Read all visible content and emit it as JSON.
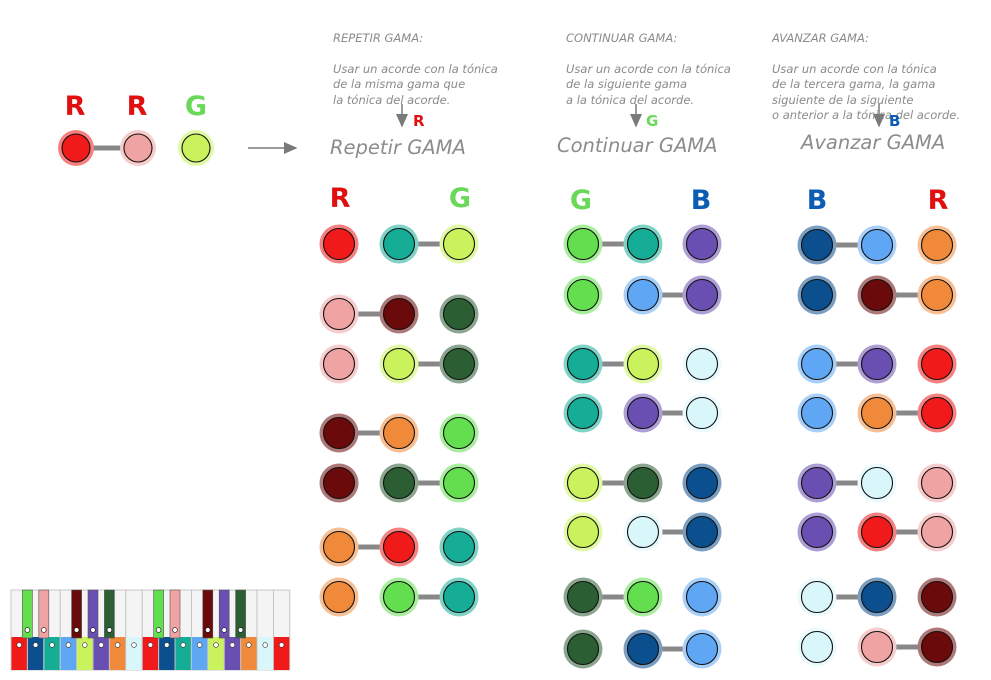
{
  "notes": {
    "repetir": {
      "head": "REPETIR GAMA:",
      "body": "Usar un acorde con la tónica\nde la misma gama que\nla tónica del acorde."
    },
    "continuar": {
      "head": "CONTINUAR GAMA:",
      "body": "Usar un acorde con la tónica\nde la siguiente gama\na la tónica del acorde."
    },
    "avanzar": {
      "head": "AVANZAR GAMA:",
      "body": "Usar un acorde con la tónica\nde la tercera gama, la gama\nsiguiente de la siguiente\no anterior a la tónica del acorde."
    }
  },
  "columns": {
    "repetir": {
      "title": "Repetir GAMA",
      "arrow_letter": "R",
      "left_letter": "R",
      "right_letter": "G"
    },
    "continuar": {
      "title": "Continuar GAMA",
      "arrow_letter": "G",
      "left_letter": "G",
      "right_letter": "B"
    },
    "avanzar": {
      "title": "Avanzar GAMA",
      "arrow_letter": "B",
      "left_letter": "B",
      "right_letter": "R"
    }
  },
  "source": {
    "letters": [
      "R",
      "R",
      "G"
    ]
  },
  "colors": {
    "R": "#e01010",
    "G": "#6ad858",
    "B": "#0b5cb3",
    "red": "#f01a1a",
    "pink": "#f0a3a3",
    "maroon": "#6b0a0a",
    "orange": "#f08a3a",
    "lime": "#c9f25c",
    "green": "#62de4e",
    "teal": "#16ad97",
    "dkgreen": "#2c5e34",
    "ltblue": "#d9f6fb",
    "navy": "#0b4f8f",
    "blue": "#5fa7f4",
    "purple": "#6a4fb3",
    "connector": "#888888"
  },
  "rows": {
    "repetir": [
      [
        "red",
        "teal",
        "lime",
        2
      ],
      [
        "pink",
        "maroon",
        "dkgreen",
        1
      ],
      [
        "pink",
        "lime",
        "dkgreen",
        2
      ],
      [
        "maroon",
        "orange",
        "green",
        1
      ],
      [
        "maroon",
        "dkgreen",
        "green",
        2
      ],
      [
        "orange",
        "red",
        "teal",
        1
      ],
      [
        "orange",
        "green",
        "teal",
        2
      ]
    ],
    "continuar": [
      [
        "green",
        "teal",
        "purple",
        1
      ],
      [
        "green",
        "blue",
        "purple",
        2
      ],
      [
        "teal",
        "lime",
        "ltblue",
        1
      ],
      [
        "teal",
        "purple",
        "ltblue",
        2
      ],
      [
        "lime",
        "dkgreen",
        "navy",
        1
      ],
      [
        "lime",
        "ltblue",
        "navy",
        2
      ],
      [
        "dkgreen",
        "green",
        "blue",
        1
      ],
      [
        "dkgreen",
        "navy",
        "blue",
        2
      ]
    ],
    "avanzar": [
      [
        "navy",
        "blue",
        "orange",
        1
      ],
      [
        "navy",
        "maroon",
        "orange",
        2
      ],
      [
        "blue",
        "purple",
        "red",
        1
      ],
      [
        "blue",
        "orange",
        "red",
        2
      ],
      [
        "purple",
        "ltblue",
        "pink",
        1
      ],
      [
        "purple",
        "red",
        "pink",
        2
      ],
      [
        "ltblue",
        "navy",
        "maroon",
        1
      ],
      [
        "ltblue",
        "pink",
        "maroon",
        2
      ]
    ]
  },
  "keyboard": {
    "bottom": [
      "red",
      "navy",
      "teal",
      "blue",
      "lime",
      "purple",
      "orange",
      "ltblue",
      "red",
      "navy",
      "teal",
      "blue",
      "lime",
      "purple",
      "orange",
      "ltblue",
      "red"
    ],
    "blacks": [
      "green",
      "pink",
      "maroon",
      "purple",
      "dkgreen",
      "green",
      "pink",
      "maroon",
      "purple",
      "dkgreen"
    ]
  }
}
